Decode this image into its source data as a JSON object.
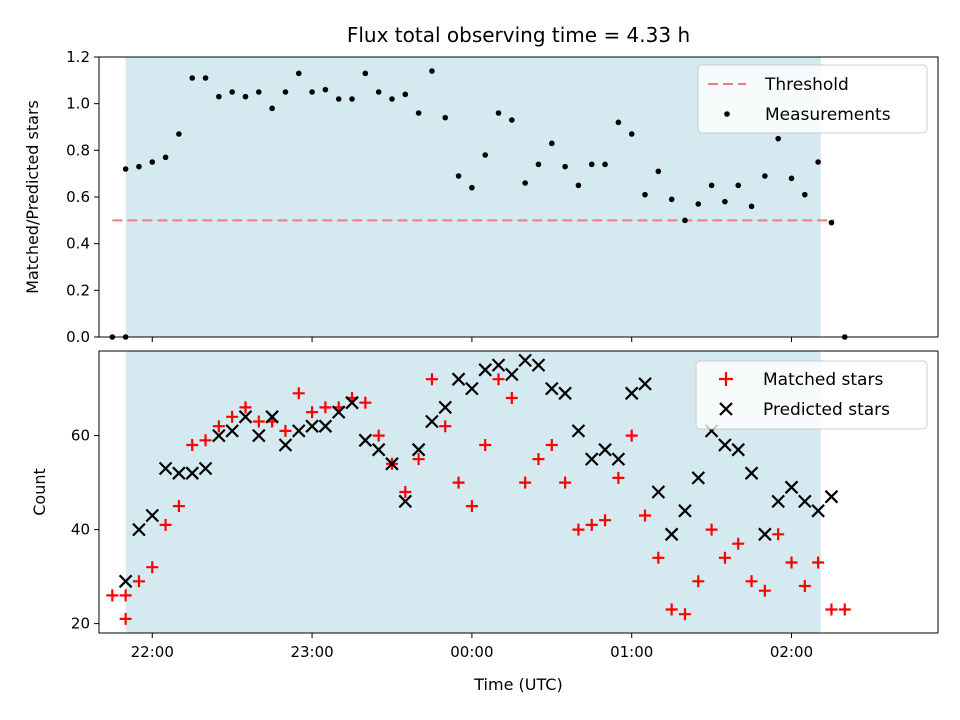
{
  "colors": {
    "shade": "#d4eaf0",
    "threshold": "#f47b7b",
    "measurement": "#000000",
    "matched": "#ff0000",
    "predicted": "#000000"
  },
  "chart_data": [
    {
      "type": "scatter",
      "title": "Flux total observing time = 4.33 h",
      "ylabel": "Matched/Predicted stars",
      "xlabel": "",
      "xlim": [
        "21:40",
        "02:55"
      ],
      "ylim": [
        0,
        1.2
      ],
      "yticks": [
        0.0,
        0.2,
        0.4,
        0.6,
        0.8,
        1.0,
        1.2
      ],
      "ytick_labels": [
        "0.0",
        "0.2",
        "0.4",
        "0.6",
        "0.8",
        "1.0",
        "1.2"
      ],
      "xticks": [
        "22:00",
        "23:00",
        "00:00",
        "01:00",
        "02:00"
      ],
      "shaded_span": [
        "21:50",
        "02:11"
      ],
      "legend_position": "top-right",
      "legend": {
        "threshold": "Threshold",
        "measurements": "Measurements"
      },
      "threshold": {
        "name": "Threshold",
        "y": 0.5,
        "x_range": [
          "21:45",
          "02:16"
        ]
      },
      "series": [
        {
          "name": "Measurements",
          "x": [
            "21:45",
            "21:50",
            "21:50",
            "21:55",
            "22:00",
            "22:05",
            "22:10",
            "22:15",
            "22:20",
            "22:25",
            "22:30",
            "22:35",
            "22:40",
            "22:45",
            "22:50",
            "22:55",
            "23:00",
            "23:05",
            "23:10",
            "23:15",
            "23:20",
            "23:25",
            "23:30",
            "23:35",
            "23:40",
            "23:45",
            "23:50",
            "23:55",
            "00:00",
            "00:05",
            "00:10",
            "00:15",
            "00:20",
            "00:25",
            "00:30",
            "00:35",
            "00:40",
            "00:45",
            "00:50",
            "00:55",
            "01:00",
            "01:05",
            "01:10",
            "01:15",
            "01:20",
            "01:25",
            "01:30",
            "01:35",
            "01:40",
            "01:45",
            "01:50",
            "01:55",
            "02:00",
            "02:05",
            "02:10",
            "02:15",
            "02:20"
          ],
          "y": [
            0.0,
            0.0,
            0.72,
            0.73,
            0.75,
            0.77,
            0.87,
            1.11,
            1.11,
            1.03,
            1.05,
            1.03,
            1.05,
            0.98,
            1.05,
            1.13,
            1.05,
            1.06,
            1.02,
            1.02,
            1.13,
            1.05,
            1.02,
            1.04,
            0.96,
            1.14,
            0.94,
            0.69,
            0.64,
            0.78,
            0.96,
            0.93,
            0.66,
            0.74,
            0.83,
            0.73,
            0.65,
            0.74,
            0.74,
            0.92,
            0.87,
            0.61,
            0.71,
            0.59,
            0.5,
            0.57,
            0.65,
            0.58,
            0.65,
            0.56,
            0.69,
            0.85,
            0.68,
            0.61,
            0.75,
            0.49,
            0.0
          ]
        }
      ]
    },
    {
      "type": "scatter",
      "title": "",
      "ylabel": "Count",
      "xlabel": "Time (UTC)",
      "xlim": [
        "21:40",
        "02:55"
      ],
      "ylim": [
        18,
        78
      ],
      "yticks": [
        20,
        40,
        60
      ],
      "ytick_labels": [
        "20",
        "40",
        "60"
      ],
      "xticks": [
        "22:00",
        "23:00",
        "00:00",
        "01:00",
        "02:00"
      ],
      "xtick_labels": [
        "22:00",
        "23:00",
        "00:00",
        "01:00",
        "02:00"
      ],
      "shaded_span": [
        "21:50",
        "02:11"
      ],
      "legend_position": "top-right",
      "legend": {
        "matched": "Matched stars",
        "predicted": "Predicted stars"
      },
      "series": [
        {
          "name": "Matched stars",
          "marker": "plus",
          "x": [
            "21:45",
            "21:50",
            "21:50",
            "21:55",
            "22:00",
            "22:05",
            "22:10",
            "22:15",
            "22:20",
            "22:25",
            "22:30",
            "22:35",
            "22:40",
            "22:45",
            "22:50",
            "22:55",
            "23:00",
            "23:05",
            "23:10",
            "23:15",
            "23:20",
            "23:25",
            "23:30",
            "23:35",
            "23:40",
            "23:45",
            "23:50",
            "23:55",
            "00:00",
            "00:05",
            "00:10",
            "00:15",
            "00:20",
            "00:25",
            "00:30",
            "00:35",
            "00:40",
            "00:45",
            "00:50",
            "00:55",
            "01:00",
            "01:05",
            "01:10",
            "01:15",
            "01:20",
            "01:25",
            "01:30",
            "01:35",
            "01:40",
            "01:45",
            "01:50",
            "01:55",
            "02:00",
            "02:05",
            "02:10",
            "02:15",
            "02:20"
          ],
          "y": [
            26,
            26,
            21,
            29,
            32,
            41,
            45,
            58,
            59,
            62,
            64,
            66,
            63,
            63,
            61,
            69,
            65,
            66,
            66,
            68,
            67,
            60,
            54,
            48,
            55,
            72,
            62,
            50,
            45,
            58,
            72,
            68,
            50,
            55,
            58,
            50,
            40,
            41,
            42,
            51,
            60,
            43,
            34,
            23,
            22,
            29,
            40,
            34,
            37,
            29,
            27,
            39,
            33,
            28,
            33,
            23,
            23
          ]
        },
        {
          "name": "Predicted stars",
          "marker": "x",
          "x": [
            "21:50",
            "21:55",
            "22:00",
            "22:05",
            "22:10",
            "22:15",
            "22:20",
            "22:25",
            "22:30",
            "22:35",
            "22:40",
            "22:45",
            "22:50",
            "22:55",
            "23:00",
            "23:05",
            "23:10",
            "23:15",
            "23:20",
            "23:25",
            "23:30",
            "23:35",
            "23:40",
            "23:45",
            "23:50",
            "23:55",
            "00:00",
            "00:05",
            "00:10",
            "00:15",
            "00:20",
            "00:25",
            "00:30",
            "00:35",
            "00:40",
            "00:45",
            "00:50",
            "00:55",
            "01:00",
            "01:05",
            "01:10",
            "01:15",
            "01:20",
            "01:25",
            "01:30",
            "01:35",
            "01:40",
            "01:45",
            "01:50",
            "01:55",
            "02:00",
            "02:05",
            "02:10",
            "02:15"
          ],
          "y": [
            29,
            40,
            43,
            53,
            52,
            52,
            53,
            60,
            61,
            64,
            60,
            64,
            58,
            61,
            62,
            62,
            65,
            67,
            59,
            57,
            54,
            46,
            57,
            63,
            66,
            72,
            70,
            74,
            75,
            73,
            76,
            75,
            70,
            69,
            61,
            55,
            57,
            55,
            69,
            71,
            48,
            39,
            44,
            51,
            61,
            58,
            57,
            52,
            39,
            46,
            49,
            46,
            44,
            47
          ]
        }
      ]
    }
  ]
}
